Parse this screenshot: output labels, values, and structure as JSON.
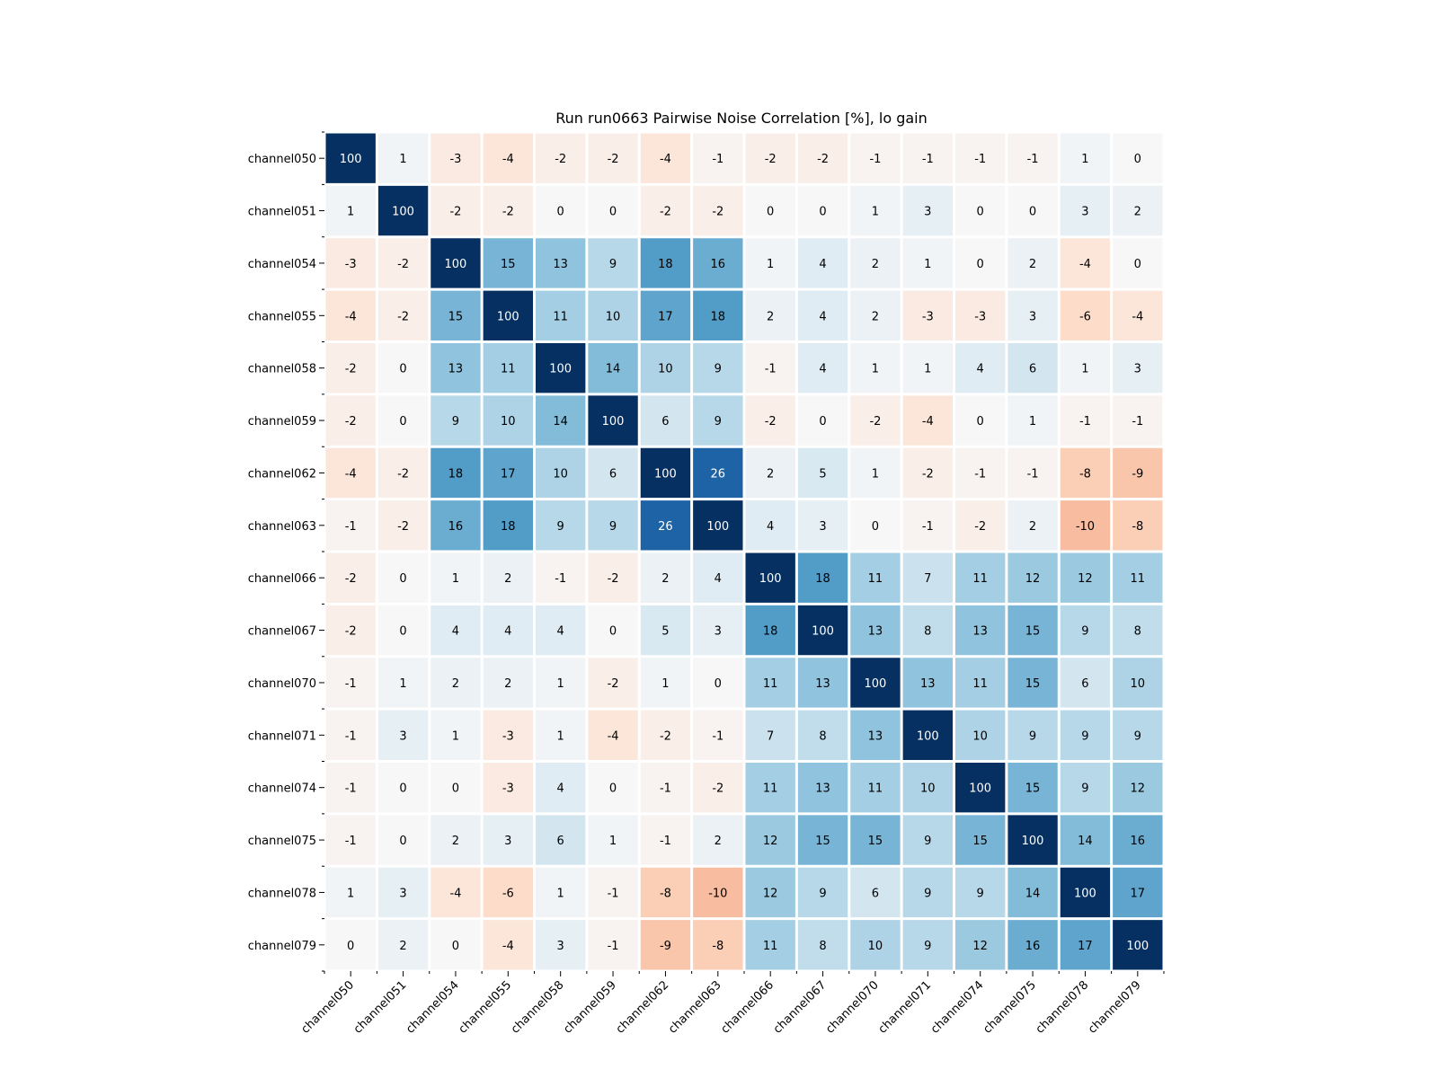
{
  "chart_data": {
    "type": "heatmap",
    "title": "Run run0663 Pairwise Noise Correlation [%], lo gain",
    "xlabel": "",
    "ylabel": "",
    "colormap": "RdBu (diverging, red negative, blue positive)",
    "vrange": [
      -100,
      100
    ],
    "rows": [
      "channel050",
      "channel051",
      "channel054",
      "channel055",
      "channel058",
      "channel059",
      "channel062",
      "channel063",
      "channel066",
      "channel067",
      "channel070",
      "channel071",
      "channel074",
      "channel075",
      "channel078",
      "channel079"
    ],
    "columns": [
      "channel050",
      "channel051",
      "channel054",
      "channel055",
      "channel058",
      "channel059",
      "channel062",
      "channel063",
      "channel066",
      "channel067",
      "channel070",
      "channel071",
      "channel074",
      "channel075",
      "channel078",
      "channel079"
    ],
    "values": [
      [
        100,
        1,
        -3,
        -4,
        -2,
        -2,
        -4,
        -1,
        -2,
        -2,
        -1,
        -1,
        -1,
        -1,
        1,
        0
      ],
      [
        1,
        100,
        -2,
        -2,
        0,
        0,
        -2,
        -2,
        0,
        0,
        1,
        3,
        0,
        0,
        3,
        2
      ],
      [
        -3,
        -2,
        100,
        15,
        13,
        9,
        18,
        16,
        1,
        4,
        2,
        1,
        0,
        2,
        -4,
        0
      ],
      [
        -4,
        -2,
        15,
        100,
        11,
        10,
        17,
        18,
        2,
        4,
        2,
        -3,
        -3,
        3,
        -6,
        -4
      ],
      [
        -2,
        0,
        13,
        11,
        100,
        14,
        10,
        9,
        -1,
        4,
        1,
        1,
        4,
        6,
        1,
        3
      ],
      [
        -2,
        0,
        9,
        10,
        14,
        100,
        6,
        9,
        -2,
        0,
        -2,
        -4,
        0,
        1,
        -1,
        -1
      ],
      [
        -4,
        -2,
        18,
        17,
        10,
        6,
        100,
        26,
        2,
        5,
        1,
        -2,
        -1,
        -1,
        -8,
        -9
      ],
      [
        -1,
        -2,
        16,
        18,
        9,
        9,
        26,
        100,
        4,
        3,
        0,
        -1,
        -2,
        2,
        -10,
        -8
      ],
      [
        -2,
        0,
        1,
        2,
        -1,
        -2,
        2,
        4,
        100,
        18,
        11,
        7,
        11,
        12,
        12,
        11
      ],
      [
        -2,
        0,
        4,
        4,
        4,
        0,
        5,
        3,
        18,
        100,
        13,
        8,
        13,
        15,
        9,
        8
      ],
      [
        -1,
        1,
        2,
        2,
        1,
        -2,
        1,
        0,
        11,
        13,
        100,
        13,
        11,
        15,
        6,
        10
      ],
      [
        -1,
        3,
        1,
        -3,
        1,
        -4,
        -2,
        -1,
        7,
        8,
        13,
        100,
        10,
        9,
        9,
        9
      ],
      [
        -1,
        0,
        0,
        -3,
        4,
        0,
        -1,
        -2,
        11,
        13,
        11,
        10,
        100,
        15,
        9,
        12
      ],
      [
        -1,
        0,
        2,
        3,
        6,
        1,
        -1,
        2,
        12,
        15,
        15,
        9,
        15,
        100,
        14,
        16
      ],
      [
        1,
        3,
        -4,
        -6,
        1,
        -1,
        -8,
        -10,
        12,
        9,
        6,
        9,
        9,
        14,
        100,
        17
      ],
      [
        0,
        2,
        0,
        -4,
        3,
        -1,
        -9,
        -8,
        11,
        8,
        10,
        9,
        12,
        16,
        17,
        100
      ]
    ]
  }
}
